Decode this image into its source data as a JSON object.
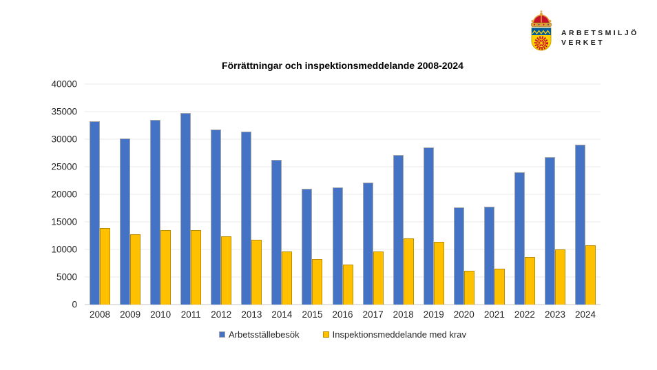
{
  "logo": {
    "line1": "ARBETSMILJÖ",
    "line2": "VERKET"
  },
  "chart_data": {
    "type": "bar",
    "title": "Förrättningar och inspektionsmeddelande 2008-2024",
    "categories": [
      "2008",
      "2009",
      "2010",
      "2011",
      "2012",
      "2013",
      "2014",
      "2015",
      "2016",
      "2017",
      "2018",
      "2019",
      "2020",
      "2021",
      "2022",
      "2023",
      "2024"
    ],
    "series": [
      {
        "name": "Arbetsställebesök",
        "color": "#4472C4",
        "border": "#A6A6A6",
        "values": [
          33300,
          30100,
          33500,
          34700,
          31800,
          31400,
          26300,
          21000,
          21300,
          22100,
          27100,
          28500,
          17600,
          17800,
          24000,
          26800,
          29000
        ]
      },
      {
        "name": "Inspektionsmeddelande med krav",
        "color": "#FFC000",
        "border": "#BC8C00",
        "values": [
          13900,
          12800,
          13500,
          13500,
          12400,
          11700,
          9600,
          8200,
          7200,
          9600,
          12000,
          11400,
          6100,
          6500,
          8600,
          10000,
          10800
        ]
      }
    ],
    "ylim": [
      0,
      40000
    ],
    "yticks": [
      0,
      5000,
      10000,
      15000,
      20000,
      25000,
      30000,
      35000,
      40000
    ],
    "grid": true,
    "legend_position": "bottom",
    "background": "#FFFFFF"
  }
}
